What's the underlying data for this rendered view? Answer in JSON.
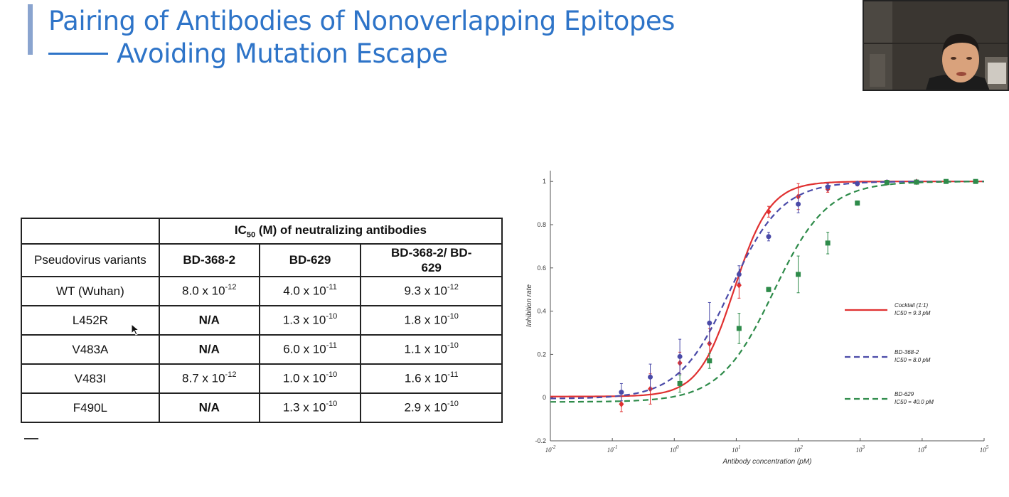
{
  "slide": {
    "title_line1": "Pairing of Antibodies of Nonoverlapping Epitopes",
    "title_line2": "Avoiding Mutation Escape"
  },
  "table": {
    "header_group": {
      "prefix": "IC",
      "sub": "50",
      "suffix": " (M) of neutralizing antibodies"
    },
    "row_header": "Pseudovirus variants",
    "columns": [
      "BD-368-2",
      "BD-629",
      "BD-368-2/ BD-629"
    ],
    "rows": [
      {
        "variant": "WT (Wuhan)",
        "cells": [
          {
            "text": "8.0 x 10",
            "exp": "-12",
            "bold": false
          },
          {
            "text": "4.0 x 10",
            "exp": "-11",
            "bold": false
          },
          {
            "text": "9.3 x 10",
            "exp": "-12",
            "bold": false
          }
        ]
      },
      {
        "variant": "L452R",
        "cells": [
          {
            "text": "N/A",
            "exp": "",
            "bold": true
          },
          {
            "text": "1.3 x 10",
            "exp": "-10",
            "bold": false
          },
          {
            "text": "1.8 x 10",
            "exp": "-10",
            "bold": false
          }
        ]
      },
      {
        "variant": "V483A",
        "cells": [
          {
            "text": "N/A",
            "exp": "",
            "bold": true
          },
          {
            "text": "6.0 x 10",
            "exp": "-11",
            "bold": false
          },
          {
            "text": "1.1 x 10",
            "exp": "-10",
            "bold": false
          }
        ]
      },
      {
        "variant": "V483I",
        "cells": [
          {
            "text": "8.7 x 10",
            "exp": "-12",
            "bold": false
          },
          {
            "text": "1.0 x 10",
            "exp": "-10",
            "bold": false
          },
          {
            "text": "1.6 x 10",
            "exp": "-11",
            "bold": false
          }
        ]
      },
      {
        "variant": "F490L",
        "cells": [
          {
            "text": "N/A",
            "exp": "",
            "bold": true
          },
          {
            "text": "1.3 x 10",
            "exp": "-10",
            "bold": false
          },
          {
            "text": "2.9 x 10",
            "exp": "-10",
            "bold": false
          }
        ]
      }
    ]
  },
  "chart_data": {
    "type": "line",
    "xlabel": "Antibody concentration (pM)",
    "ylabel": "Inhibition rate",
    "x_scale": "log",
    "xlim": [
      0.01,
      100000
    ],
    "ylim": [
      -0.2,
      1.05
    ],
    "x_ticks": [
      {
        "base": "10",
        "exp": "-2"
      },
      {
        "base": "10",
        "exp": "-1"
      },
      {
        "base": "10",
        "exp": "0"
      },
      {
        "base": "10",
        "exp": "1"
      },
      {
        "base": "10",
        "exp": "2"
      },
      {
        "base": "10",
        "exp": "3"
      },
      {
        "base": "10",
        "exp": "4"
      },
      {
        "base": "10",
        "exp": "5"
      }
    ],
    "y_ticks": [
      "-0.2",
      "0",
      "0.2",
      "0.4",
      "0.6",
      "0.8",
      "1"
    ],
    "grid": false,
    "legend_position": "right",
    "series": [
      {
        "name": "Cocktail (1:1)",
        "ic50_label": "IC50 = 9.3 pM",
        "color": "#e03030",
        "dash": "solid",
        "marker": "diamond",
        "curve": {
          "ic50": 9.3,
          "hill": 1.5,
          "bottom": 0.005,
          "top": 1.0
        },
        "points": [
          {
            "x": 0.14,
            "y": -0.03,
            "err": 0.035
          },
          {
            "x": 0.41,
            "y": 0.04,
            "err": 0.07
          },
          {
            "x": 1.23,
            "y": 0.16,
            "err": 0.05
          },
          {
            "x": 3.7,
            "y": 0.25,
            "err": 0.07
          },
          {
            "x": 11.1,
            "y": 0.52,
            "err": 0.06
          },
          {
            "x": 33.3,
            "y": 0.86,
            "err": 0.025
          },
          {
            "x": 100,
            "y": 0.93,
            "err": 0.06
          },
          {
            "x": 300,
            "y": 0.965,
            "err": 0.015
          },
          {
            "x": 900,
            "y": 0.99,
            "err": 0.01
          },
          {
            "x": 2700,
            "y": 0.995,
            "err": 0.005
          },
          {
            "x": 8100,
            "y": 0.998,
            "err": 0.005
          }
        ]
      },
      {
        "name": "BD-368-2",
        "ic50_label": "IC50 = 8.0 pM",
        "color": "#4a4aa8",
        "dash": "dashed",
        "marker": "circle",
        "curve": {
          "ic50": 8.0,
          "hill": 1.05,
          "bottom": -0.005,
          "top": 1.0
        },
        "points": [
          {
            "x": 0.14,
            "y": 0.025,
            "err": 0.04
          },
          {
            "x": 0.41,
            "y": 0.095,
            "err": 0.06
          },
          {
            "x": 1.23,
            "y": 0.19,
            "err": 0.08
          },
          {
            "x": 3.7,
            "y": 0.345,
            "err": 0.095
          },
          {
            "x": 11.1,
            "y": 0.57,
            "err": 0.04
          },
          {
            "x": 33.3,
            "y": 0.745,
            "err": 0.02
          },
          {
            "x": 100,
            "y": 0.895,
            "err": 0.04
          },
          {
            "x": 300,
            "y": 0.975,
            "err": 0.015
          },
          {
            "x": 900,
            "y": 0.99,
            "err": 0.01
          },
          {
            "x": 2700,
            "y": 0.997,
            "err": 0.008
          },
          {
            "x": 8100,
            "y": 0.998,
            "err": 0.005
          }
        ]
      },
      {
        "name": "BD-629",
        "ic50_label": "IC50 = 40.0 pM",
        "color": "#2e8b4a",
        "dash": "dashed",
        "marker": "square",
        "curve": {
          "ic50": 40.0,
          "hill": 1.0,
          "bottom": -0.02,
          "top": 1.0
        },
        "points": [
          {
            "x": 1.23,
            "y": 0.065,
            "err": 0.04
          },
          {
            "x": 3.7,
            "y": 0.17,
            "err": 0.035
          },
          {
            "x": 11.1,
            "y": 0.32,
            "err": 0.07
          },
          {
            "x": 33.3,
            "y": 0.5,
            "err": 0.01
          },
          {
            "x": 100,
            "y": 0.57,
            "err": 0.085
          },
          {
            "x": 300,
            "y": 0.715,
            "err": 0.05
          },
          {
            "x": 900,
            "y": 0.9,
            "err": 0.01
          },
          {
            "x": 2700,
            "y": 0.995,
            "err": 0.01
          },
          {
            "x": 8100,
            "y": 0.997,
            "err": 0.005
          },
          {
            "x": 24300,
            "y": 1.0,
            "err": 0.005
          },
          {
            "x": 72900,
            "y": 1.0,
            "err": 0.005
          }
        ]
      }
    ]
  }
}
